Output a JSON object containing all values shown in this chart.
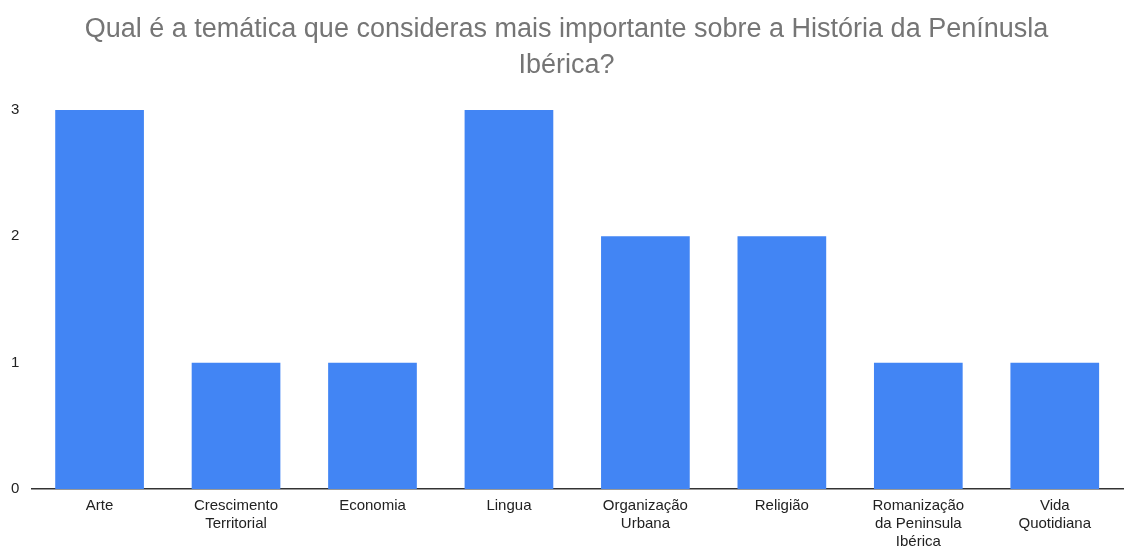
{
  "chart_data": {
    "type": "bar",
    "title": "Qual é a temática que consideras mais importante sobre a História da Penínusla Ibérica?",
    "categories": [
      "Arte",
      "Crescimento Territorial",
      "Economia",
      "Lingua",
      "Organização Urbana",
      "Religião",
      "Romanização da Peninsula Ibérica",
      "Vida Quotidiana"
    ],
    "values": [
      3,
      1,
      1,
      3,
      2,
      2,
      1,
      1
    ],
    "color": "#4285f4",
    "ylim": [
      0,
      3
    ],
    "yticks": [
      0,
      1,
      2,
      3
    ],
    "grid": false,
    "legend": false
  }
}
